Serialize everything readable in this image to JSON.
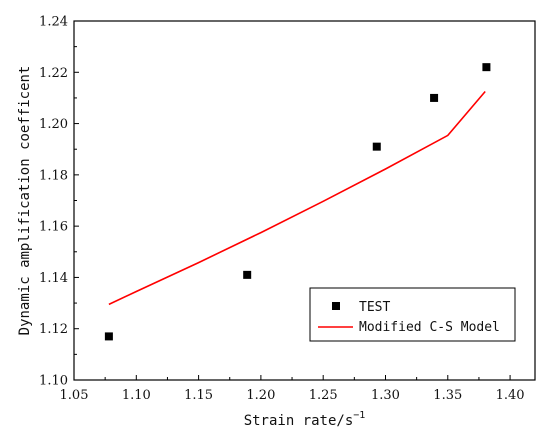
{
  "chart_data": {
    "type": "scatter",
    "xlabel": "Strain rate/s",
    "xlabel_sup": "−1",
    "ylabel": "Dynamic amplification coefficent",
    "xlim": [
      1.05,
      1.42
    ],
    "ylim": [
      1.1,
      1.24
    ],
    "xticks": [
      "1.05",
      "1.10",
      "1.15",
      "1.20",
      "1.25",
      "1.30",
      "1.35",
      "1.40"
    ],
    "yticks": [
      "1.10",
      "1.12",
      "1.14",
      "1.16",
      "1.18",
      "1.20",
      "1.22",
      "1.24"
    ],
    "legend_position": "bottom-right",
    "series": [
      {
        "name": "TEST",
        "kind": "scatter",
        "color": "#000000",
        "x": [
          1.078,
          1.189,
          1.293,
          1.339,
          1.381
        ],
        "y": [
          1.117,
          1.141,
          1.191,
          1.21,
          1.222
        ]
      },
      {
        "name": "Modified C-S Model",
        "kind": "line",
        "color": "#ff0000",
        "x": [
          1.078,
          1.1,
          1.15,
          1.2,
          1.25,
          1.3,
          1.35,
          1.38
        ],
        "y": [
          1.1295,
          1.1345,
          1.1458,
          1.1575,
          1.1697,
          1.1823,
          1.1954,
          1.2125
        ]
      }
    ]
  }
}
